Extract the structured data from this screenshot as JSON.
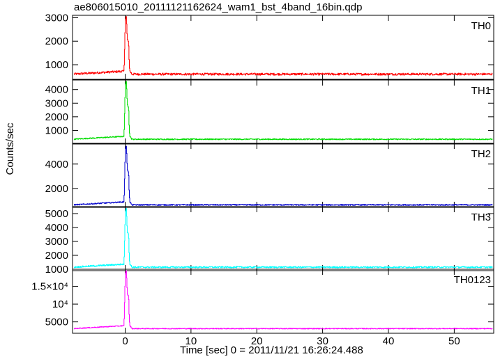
{
  "chart_data": {
    "type": "line",
    "title": "ae806015010_20111121162624_wam1_bst_4band_16bin.qdp",
    "xlabel": "Time [sec] 0 = 2011/11/21 16:26:24.488",
    "ylabel": "Counts/sec",
    "xlim": [
      -8,
      56
    ],
    "x_ticks": [
      0,
      10,
      20,
      30,
      40,
      50
    ],
    "x_tick_labels": [
      "0",
      "10",
      "20",
      "30",
      "40",
      "50"
    ],
    "burst_profile": {
      "x": [
        -8,
        -0.2,
        0.0,
        0.15,
        0.3,
        0.5,
        0.6,
        0.7,
        1.0,
        56
      ],
      "fraction_of_peak": [
        0.0,
        0.05,
        0.95,
        1.0,
        0.6,
        0.55,
        0.15,
        0.05,
        0.0,
        0.0
      ]
    },
    "panels": [
      {
        "name": "TH0",
        "color": "#ff0000",
        "baseline": 600,
        "peak": 3050,
        "noise": 45,
        "ylim": [
          380,
          3100
        ],
        "y_ticks": [
          1000,
          2000,
          3000
        ],
        "y_tick_labels": [
          "1000",
          "2000",
          "3000"
        ]
      },
      {
        "name": "TH1",
        "color": "#00dd00",
        "baseline": 350,
        "peak": 4600,
        "noise": 40,
        "ylim": [
          0,
          4700
        ],
        "y_ticks": [
          1000,
          2000,
          3000,
          4000
        ],
        "y_tick_labels": [
          "1000",
          "2000",
          "3000",
          "4000"
        ]
      },
      {
        "name": "TH2",
        "color": "#0000cc",
        "baseline": 650,
        "peak": 5500,
        "noise": 45,
        "ylim": [
          450,
          5700
        ],
        "y_ticks": [
          2000,
          4000
        ],
        "y_tick_labels": [
          "2000",
          "4000"
        ]
      },
      {
        "name": "TH3",
        "color": "#00ffff",
        "baseline": 1150,
        "peak": 5400,
        "noise": 55,
        "ylim": [
          900,
          5500
        ],
        "y_ticks": [
          1000,
          2000,
          3000,
          4000,
          5000
        ],
        "y_tick_labels": [
          "1000",
          "2000",
          "3000",
          "4000",
          "5000"
        ]
      },
      {
        "name": "TH0123",
        "color": "#ff00ff",
        "baseline": 3100,
        "peak": 19500,
        "noise": 120,
        "ylim": [
          1800,
          19800
        ],
        "y_ticks": [
          5000,
          10000,
          15000
        ],
        "y_tick_labels": [
          "5000",
          "10⁴",
          "1.5×10⁴"
        ]
      }
    ]
  }
}
